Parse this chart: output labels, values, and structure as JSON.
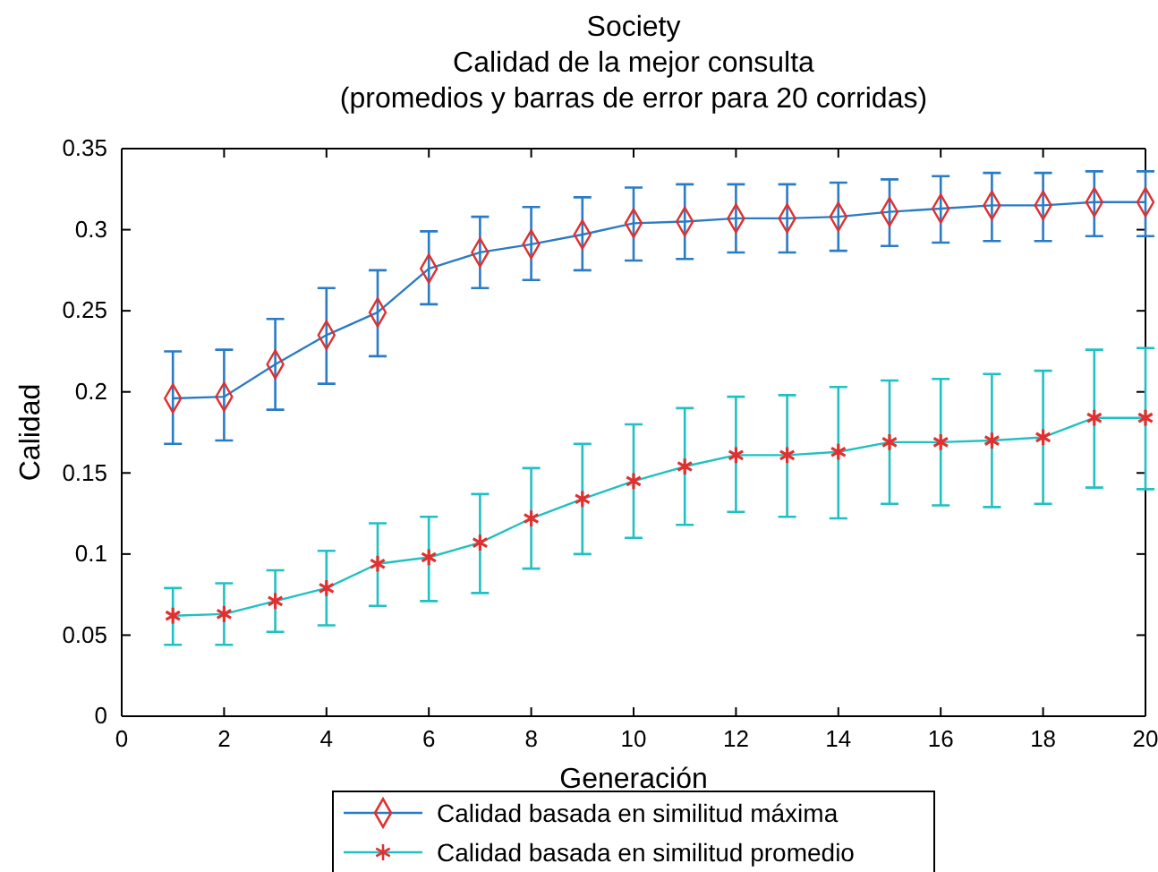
{
  "chart_data": {
    "type": "line",
    "title": "Society",
    "subtitle": "Calidad de la mejor consulta\n(promedios y barras de error para 20 corridas)",
    "xlabel": "Generación",
    "ylabel": "Calidad",
    "x": [
      1,
      2,
      3,
      4,
      5,
      6,
      7,
      8,
      9,
      10,
      11,
      12,
      13,
      14,
      15,
      16,
      17,
      18,
      19,
      20
    ],
    "series": [
      {
        "name": "Calidad basada en similitud máxima",
        "color": "#2b7bc4",
        "marker": "diamond",
        "values": [
          0.196,
          0.197,
          0.217,
          0.235,
          0.249,
          0.276,
          0.286,
          0.291,
          0.297,
          0.304,
          0.305,
          0.307,
          0.307,
          0.308,
          0.311,
          0.313,
          0.315,
          0.315,
          0.317,
          0.317
        ],
        "errors": [
          [
            0.168,
            0.225
          ],
          [
            0.17,
            0.226
          ],
          [
            0.189,
            0.245
          ],
          [
            0.205,
            0.264
          ],
          [
            0.222,
            0.275
          ],
          [
            0.254,
            0.299
          ],
          [
            0.264,
            0.308
          ],
          [
            0.269,
            0.314
          ],
          [
            0.275,
            0.32
          ],
          [
            0.281,
            0.326
          ],
          [
            0.282,
            0.328
          ],
          [
            0.286,
            0.328
          ],
          [
            0.286,
            0.328
          ],
          [
            0.287,
            0.329
          ],
          [
            0.29,
            0.331
          ],
          [
            0.292,
            0.333
          ],
          [
            0.293,
            0.335
          ],
          [
            0.293,
            0.335
          ],
          [
            0.296,
            0.336
          ],
          [
            0.296,
            0.336
          ]
        ]
      },
      {
        "name": "Calidad basada en similitud promedio",
        "color": "#22c0c0",
        "marker": "cross",
        "values": [
          0.062,
          0.063,
          0.071,
          0.079,
          0.094,
          0.098,
          0.107,
          0.122,
          0.134,
          0.145,
          0.154,
          0.161,
          0.161,
          0.163,
          0.169,
          0.169,
          0.17,
          0.172,
          0.184,
          0.184
        ],
        "errors": [
          [
            0.044,
            0.079
          ],
          [
            0.044,
            0.082
          ],
          [
            0.052,
            0.09
          ],
          [
            0.056,
            0.102
          ],
          [
            0.068,
            0.119
          ],
          [
            0.071,
            0.123
          ],
          [
            0.076,
            0.137
          ],
          [
            0.091,
            0.153
          ],
          [
            0.1,
            0.168
          ],
          [
            0.11,
            0.18
          ],
          [
            0.118,
            0.19
          ],
          [
            0.126,
            0.197
          ],
          [
            0.123,
            0.198
          ],
          [
            0.122,
            0.203
          ],
          [
            0.131,
            0.207
          ],
          [
            0.13,
            0.208
          ],
          [
            0.129,
            0.211
          ],
          [
            0.131,
            0.213
          ],
          [
            0.141,
            0.226
          ],
          [
            0.14,
            0.227
          ]
        ]
      }
    ],
    "xlim": [
      0,
      20
    ],
    "xticks": [
      0,
      2,
      4,
      6,
      8,
      10,
      12,
      14,
      16,
      18,
      20
    ],
    "ylim": [
      0,
      0.35
    ],
    "yticks": [
      0,
      0.05,
      0.1,
      0.15,
      0.2,
      0.25,
      0.3,
      0.35
    ],
    "legend": "bottom",
    "grid": false
  }
}
